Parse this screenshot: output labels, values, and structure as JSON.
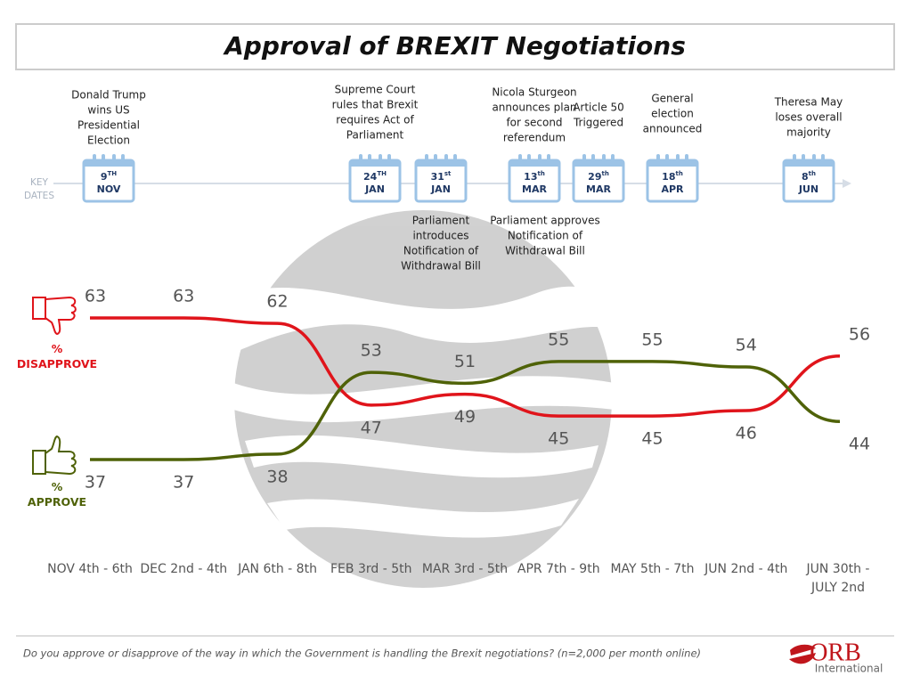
{
  "chart_data": {
    "type": "line",
    "title": "Approval of BREXIT Negotiations",
    "categories": [
      "NOV 4th - 6th",
      "DEC 2nd - 4th",
      "JAN 6th - 8th",
      "FEB 3rd - 5th",
      "MAR 3rd - 5th",
      "APR 7th - 9th",
      "MAY 5th - 7th",
      "JUN 2nd - 4th",
      "JUN 30th - JULY 2nd"
    ],
    "series": [
      {
        "name": "% DISAPPROVE",
        "color": "#e0141b",
        "values": [
          63,
          63,
          62,
          47,
          49,
          45,
          45,
          46,
          56
        ]
      },
      {
        "name": "% APPROVE",
        "color": "#4f6208",
        "values": [
          37,
          37,
          38,
          53,
          51,
          55,
          55,
          54,
          44
        ]
      }
    ],
    "timeline_label": "KEY DATES",
    "key_dates": [
      {
        "day": "9",
        "suffix": "TH",
        "month": "NOV",
        "above": [
          "Donald Trump",
          "wins US",
          "Presidential",
          "Election"
        ]
      },
      {
        "day": "24",
        "suffix": "TH",
        "month": "JAN",
        "above": [
          "Supreme Court",
          "rules that Brexit",
          "requires Act of",
          "Parliament"
        ]
      },
      {
        "day": "31",
        "suffix": "st",
        "month": "JAN",
        "below": [
          "Parliament",
          "introduces",
          "Notification of",
          "Withdrawal Bill"
        ]
      },
      {
        "day": "13",
        "suffix": "th",
        "month": "MAR",
        "above": [
          "Nicola Sturgeon",
          "announces plan",
          "for second",
          "referendum"
        ],
        "below": [
          "Parliament approves",
          "Notification of",
          "Withdrawal Bill"
        ]
      },
      {
        "day": "29",
        "suffix": "th",
        "month": "MAR",
        "above": [
          "Article 50",
          "Triggered"
        ]
      },
      {
        "day": "18",
        "suffix": "th",
        "month": "APR",
        "above": [
          "General",
          "election",
          "announced"
        ]
      },
      {
        "day": "8",
        "suffix": "th",
        "month": "JUN",
        "above": [
          "Theresa May",
          "loses overall",
          "majority"
        ]
      }
    ],
    "footnote": "Do you approve or disapprove of the way in which the Government is handling the Brexit negotiations? (n=2,000 per month online)",
    "logo": {
      "name": "ORB",
      "subtitle": "International"
    }
  }
}
